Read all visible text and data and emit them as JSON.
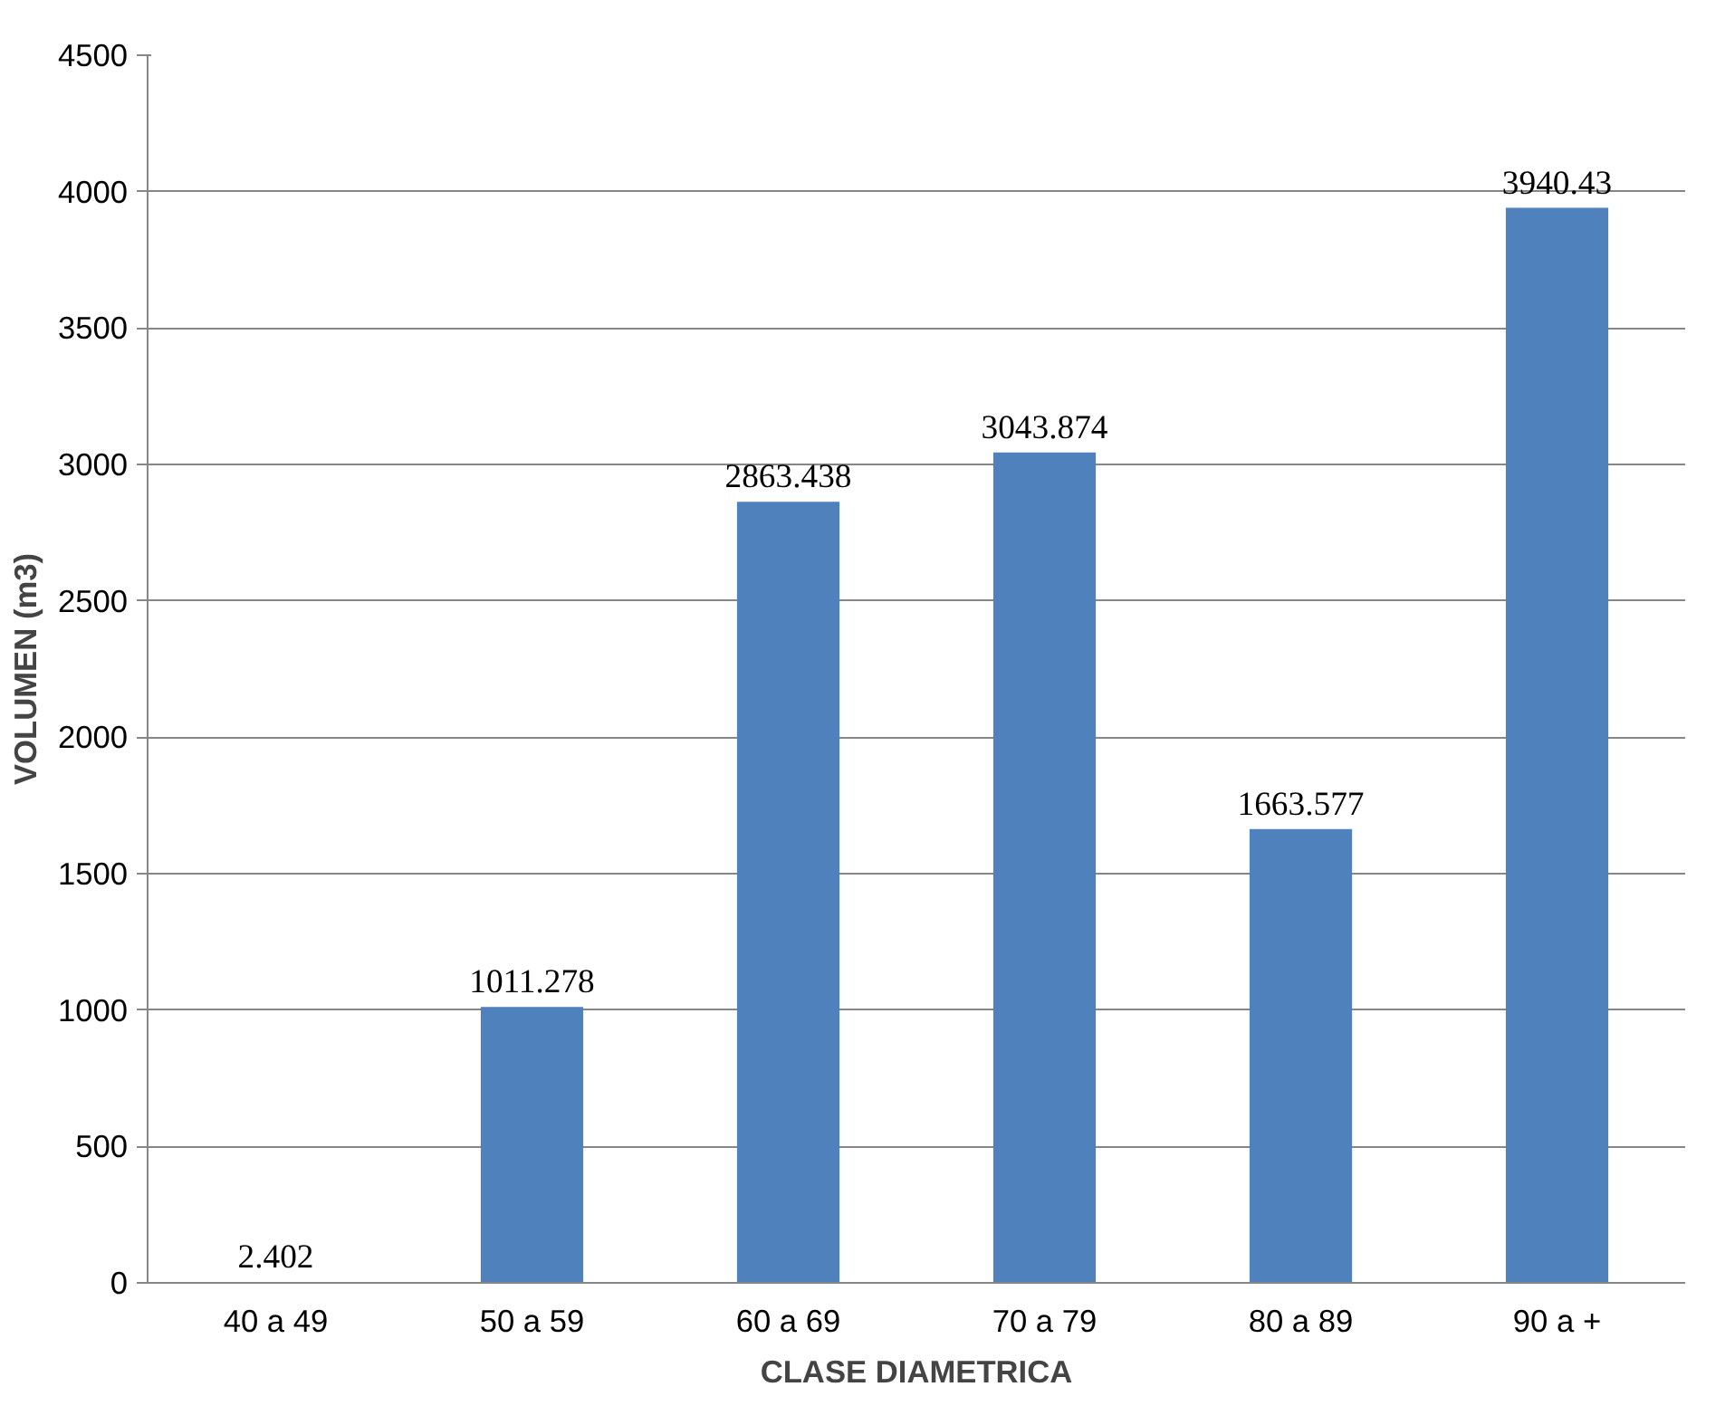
{
  "chart_data": {
    "type": "bar",
    "xlabel": "CLASE DIAMETRICA",
    "ylabel": "VOLUMEN (m3)",
    "categories": [
      "40 a 49",
      "50 a 59",
      "60 a 69",
      "70 a 79",
      "80 a 89",
      "90 a +"
    ],
    "values": [
      2.402,
      1011.278,
      2863.438,
      3043.874,
      1663.577,
      3940.43
    ],
    "color": "#4f81bd",
    "ylim": [
      0,
      4500
    ],
    "yticks": [
      0,
      500,
      1000,
      1500,
      2000,
      2500,
      3000,
      3500,
      4000,
      4500
    ],
    "grid": "y",
    "data_labels": true
  }
}
